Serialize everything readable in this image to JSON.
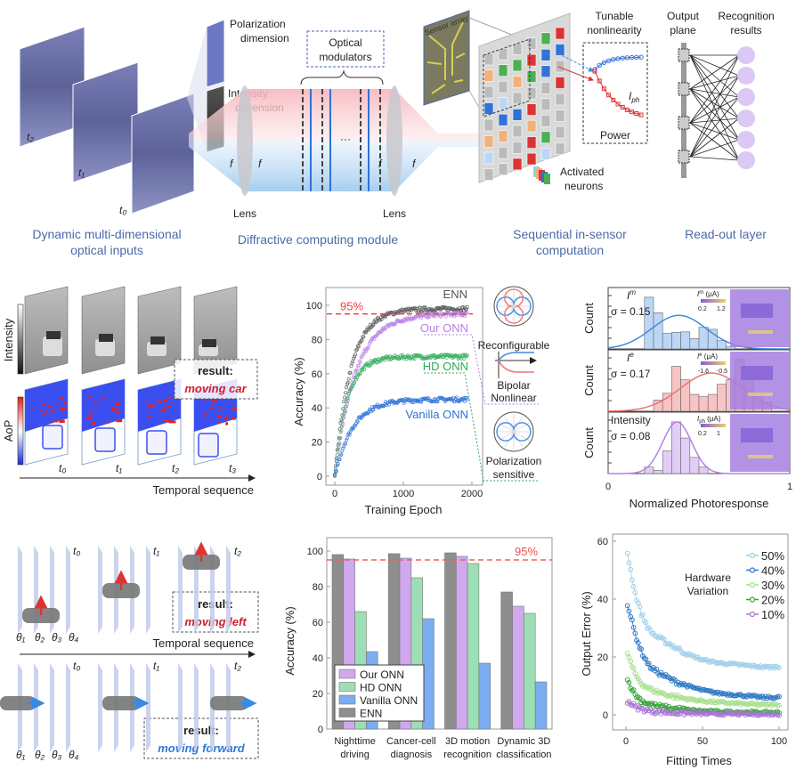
{
  "overview": {
    "frame_labels": [
      "t₂",
      "t₁",
      "t₀"
    ],
    "polarization_dimension": [
      "Polarization",
      "dimension"
    ],
    "intensity_dimension": [
      "Intensity",
      "dimension"
    ],
    "optical_modulators": [
      "Optical",
      "modulators"
    ],
    "focal_label": "f",
    "ellipsis": "···",
    "lens_label": "Lens",
    "sensor_array_label": "Sensor array",
    "tunable_nonlinearity": [
      "Tunable",
      "nonlinearity"
    ],
    "iph_label": {
      "base": "I",
      "sub": "ph"
    },
    "power_label": "Power",
    "activated_neurons": [
      "Activated",
      "neurons"
    ],
    "output_plane": [
      "Output",
      "plane"
    ],
    "recognition_results": [
      "Recognition",
      "results"
    ],
    "captions": {
      "inputs": [
        "Dynamic multi-dimensional",
        "optical inputs"
      ],
      "diffractive": "Diffractive computing module",
      "sensor": [
        "Sequential in-sensor",
        "computation"
      ],
      "readout": "Read-out layer"
    },
    "colors": {
      "caption": "#4a6aa8",
      "red_beam": "#f4a0a8",
      "blue_beam": "#9cc8ee"
    }
  },
  "sequence_panel": {
    "row_labels": [
      "Intensity",
      "AoP"
    ],
    "time_labels": [
      "t₀",
      "t₁",
      "t₂",
      "t₃"
    ],
    "axis_label": "Temporal sequence",
    "result_label": "result:",
    "result_value": "moving car"
  },
  "training_chart": {
    "chart_data": {
      "type": "scatter",
      "xlabel": "Training Epoch",
      "ylabel": "Accuracy (%)",
      "xlim": [
        0,
        2000
      ],
      "ylim": [
        0,
        110
      ],
      "xticks": [
        "0",
        "1000",
        "2000"
      ],
      "yticks": [
        "0",
        "20",
        "40",
        "60",
        "80",
        "100"
      ],
      "threshold": {
        "value": 95,
        "label": "95%"
      },
      "series": [
        {
          "name": "ENN",
          "plateau": 98,
          "tau_epochs": 230,
          "color": "#555555"
        },
        {
          "name": "Our ONN",
          "plateau": 95,
          "tau_epochs": 300,
          "color": "#b57fe6"
        },
        {
          "name": "HD ONN",
          "plateau": 70,
          "tau_epochs": 180,
          "color": "#2eaa5a"
        },
        {
          "name": "Vanilla ONN",
          "plateau": 45,
          "tau_epochs": 260,
          "color": "#2f72d8"
        }
      ]
    },
    "annotations": {
      "reconfigurable": "Reconfigurable",
      "bipolar": [
        "Bipolar",
        "Nonlinear"
      ],
      "polarization": [
        "Polarization",
        "sensitive"
      ]
    }
  },
  "histogram_chart": {
    "chart_data": {
      "type": "bar",
      "xlabel": "Normalized Photoresponse",
      "ylabel": "Count",
      "xlim": [
        0,
        1
      ],
      "xticks": [
        "0",
        "1"
      ],
      "panels": [
        {
          "label": {
            "base": "I",
            "sup": "m"
          },
          "sigma": "σ = 0.15",
          "sigma_value": 0.15,
          "mean": 0.39,
          "bin_start": 0.2,
          "bin_width": 0.05,
          "counts": [
            10,
            7,
            3,
            3.2,
            3.3,
            2,
            4.2,
            3.8,
            1.6,
            0.4
          ],
          "fit_peak": 6.5,
          "color": "#3f8ae0",
          "fill": "#bcd7f5",
          "inset": {
            "unit": {
              "base": "I",
              "sup": "m",
              "rest": " (μA)"
            },
            "range": [
              "0.2",
              "1.2"
            ]
          }
        },
        {
          "label": {
            "base": "I",
            "sup": "e"
          },
          "sigma": "σ = 0.17",
          "sigma_value": 0.17,
          "mean": 0.57,
          "bin_start": 0.25,
          "bin_width": 0.05,
          "counts": [
            1,
            1.6,
            4,
            2.8,
            1.5,
            1.3,
            1.5,
            2.4,
            2.8,
            4.6,
            3,
            1.6,
            0.8
          ],
          "fit_peak": 3.4,
          "color": "#f07272",
          "fill": "#f7c4c4",
          "inset": {
            "unit": {
              "base": "I",
              "sup": "e",
              "rest": " (μA)"
            },
            "range": [
              "-1.6",
              "-0.5"
            ]
          }
        },
        {
          "label": {
            "base": "Intensity",
            "sup": ""
          },
          "sigma": "σ = 0.08",
          "sigma_value": 0.08,
          "mean": 0.38,
          "bin_start": 0.2,
          "bin_width": 0.05,
          "counts": [
            1,
            0.5,
            3.5,
            8,
            5.5,
            2.5,
            1
          ],
          "fit_peak": 8,
          "color": "#b57fe6",
          "fill": "#e2cdf6",
          "inset": {
            "unit": {
              "base": "I",
              "sub": "ph",
              "rest": " (μA)"
            },
            "range": [
              "0.2",
              "1"
            ]
          }
        }
      ]
    }
  },
  "motion_panel": {
    "time_labels": [
      "t₀",
      "t₁",
      "t₂"
    ],
    "angle_labels": [
      "θ₁",
      "θ₂",
      "θ₃",
      "θ₄"
    ],
    "axis_label": "Temporal sequence",
    "result_label": "result:",
    "result_left": "moving left",
    "result_forward": "moving forward"
  },
  "accuracy_bar_chart": {
    "chart_data": {
      "type": "bar",
      "ylabel": "Accuracy (%)",
      "ylim": [
        0,
        100
      ],
      "yticks": [
        "0",
        "20",
        "40",
        "60",
        "80",
        "100"
      ],
      "threshold": {
        "value": 95,
        "label": "95%"
      },
      "categories": [
        [
          "Nighttime",
          "driving"
        ],
        [
          "Cancer-cell",
          "diagnosis"
        ],
        [
          "3D motion",
          "recognition"
        ],
        [
          "Dynamic 3D",
          "classification"
        ]
      ],
      "series": [
        {
          "name": "ENN",
          "values": [
            98,
            98.5,
            99,
            77
          ],
          "color": "#8e8e8e"
        },
        {
          "name": "Our ONN",
          "values": [
            95.5,
            96,
            97,
            69
          ],
          "color": "#cfa8ee"
        },
        {
          "name": "HD ONN",
          "values": [
            66,
            85,
            93,
            65
          ],
          "color": "#9ddfb5"
        },
        {
          "name": "Vanilla ONN",
          "values": [
            43.5,
            62,
            37,
            26.5
          ],
          "color": "#7aaef0"
        }
      ],
      "legend_order": [
        "Our ONN",
        "HD ONN",
        "Vanilla ONN",
        "ENN"
      ],
      "legend": "bottom-left"
    }
  },
  "error_chart": {
    "chart_data": {
      "type": "line",
      "xlabel": "Fitting Times",
      "ylabel": "Output Error (%)",
      "xlim": [
        0,
        100
      ],
      "ylim": [
        -5,
        60
      ],
      "xticks": [
        "0",
        "50",
        "100"
      ],
      "yticks": [
        "0",
        "20",
        "40",
        "60"
      ],
      "legend_title": [
        "Hardware",
        "Variation"
      ],
      "x": [
        1,
        3,
        6,
        10,
        15,
        20,
        30,
        40,
        50,
        60,
        70,
        80,
        90,
        100
      ],
      "series": [
        {
          "name": "50%",
          "values": [
            56,
            50,
            42,
            35,
            29.5,
            27,
            24,
            21,
            19,
            18,
            17.5,
            17,
            16.5,
            16.5
          ],
          "color": "#9fd0ea"
        },
        {
          "name": "40%",
          "values": [
            38.5,
            34,
            28,
            22,
            17,
            15,
            12,
            10,
            8.5,
            7.5,
            7,
            6.5,
            6,
            6
          ],
          "color": "#2f78c4"
        },
        {
          "name": "30%",
          "values": [
            21.5,
            18,
            14,
            11,
            9,
            8,
            6.5,
            5.5,
            4.8,
            4.3,
            4,
            3.7,
            3.5,
            3.5
          ],
          "color": "#a9e08e"
        },
        {
          "name": "20%",
          "values": [
            12,
            10,
            7,
            5,
            3.8,
            3,
            2.2,
            1.7,
            1.3,
            1.1,
            1,
            0.9,
            0.8,
            0.8
          ],
          "color": "#3aa53a"
        },
        {
          "name": "10%",
          "values": [
            4.8,
            4,
            2.8,
            2,
            1.5,
            1.1,
            0.8,
            0.6,
            0.4,
            0.3,
            0.3,
            0.2,
            0.2,
            0.2
          ],
          "color": "#a874d6"
        }
      ],
      "legend": "top-right"
    }
  }
}
